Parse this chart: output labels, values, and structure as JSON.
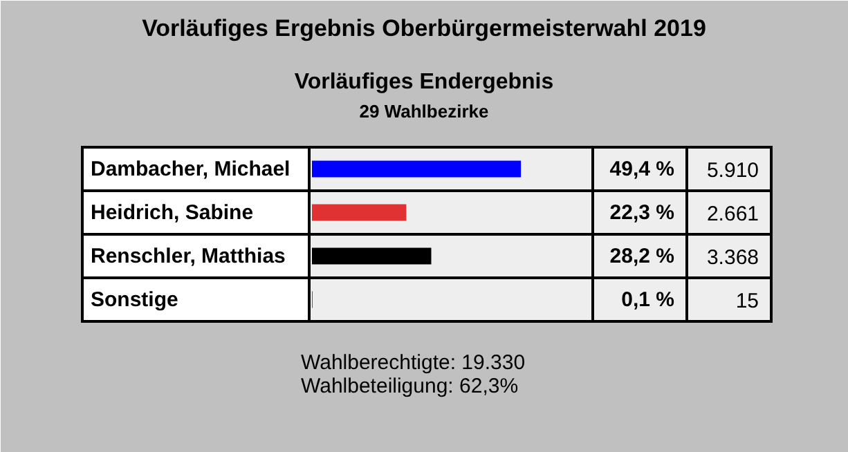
{
  "chart_data": {
    "type": "bar",
    "orientation": "horizontal",
    "title": "Vorläufiges Ergebnis Oberbürgermeisterwahl 2019",
    "subtitle": "Vorläufiges Endergebnis",
    "categories": [
      "Dambacher, Michael",
      "Heidrich, Sabine",
      "Renschler, Matthias",
      "Sonstige"
    ],
    "values": [
      49.4,
      22.3,
      28.2,
      0.1
    ],
    "colors": [
      "#0000ff",
      "#e03232",
      "#000000",
      "#000000"
    ],
    "value_labels": [
      "49,4 %",
      "22,3 %",
      "28,2 %",
      "0,1 %"
    ],
    "xlim": [
      0,
      65.4
    ],
    "tick_labels": false,
    "grid": false,
    "annotations": [
      "29 Wahlbezirke",
      "5.910",
      "2.661",
      "3.368",
      "15",
      "Wahlberechtigte:   19.330",
      "Wahlbeteiligung:    62,3%"
    ]
  }
}
